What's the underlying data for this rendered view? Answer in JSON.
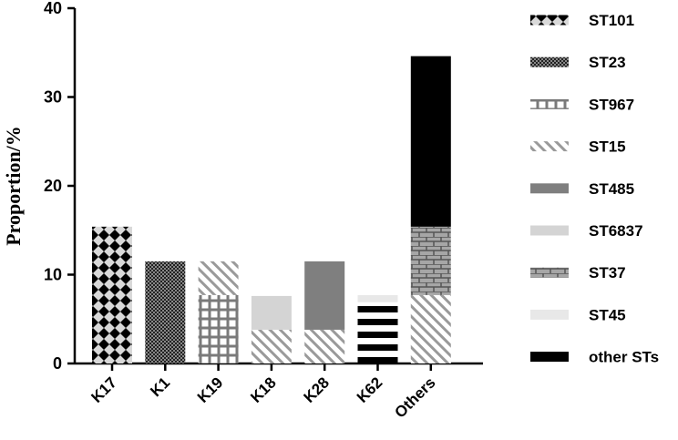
{
  "chart_data": {
    "type": "bar",
    "stacked": true,
    "title": "",
    "xlabel": "",
    "ylabel": "Proportion/%",
    "ylim": [
      0,
      40
    ],
    "yticks": [
      0,
      10,
      20,
      30,
      40
    ],
    "categories": [
      "K17",
      "K1",
      "K19",
      "K18",
      "K28",
      "K62",
      "Others"
    ],
    "series": [
      {
        "name": "ST101",
        "pattern": "diamond-check",
        "values": [
          15.4,
          0,
          0,
          0,
          0,
          0,
          0
        ]
      },
      {
        "name": "ST23",
        "pattern": "fine-check",
        "values": [
          0,
          11.5,
          0,
          0,
          0,
          0,
          0
        ]
      },
      {
        "name": "ST967",
        "pattern": "grid",
        "values": [
          0,
          0,
          7.7,
          0,
          0,
          0,
          0
        ]
      },
      {
        "name": "ST15",
        "pattern": "diagonal-hatch",
        "values": [
          0,
          0,
          3.8,
          3.8,
          3.8,
          0,
          7.7
        ]
      },
      {
        "name": "ST485",
        "pattern": "solid-gray",
        "values": [
          0,
          0,
          0,
          0,
          7.7,
          0,
          0
        ]
      },
      {
        "name": "ST6837",
        "pattern": "light-gray",
        "values": [
          0,
          0,
          0,
          3.8,
          0,
          0,
          0
        ]
      },
      {
        "name": "ST37",
        "pattern": "brick",
        "values": [
          0,
          0,
          0,
          0,
          0,
          0,
          7.7
        ]
      },
      {
        "name": "ST45",
        "pattern": "very-light-gray",
        "values": [
          0,
          0,
          0,
          0,
          0,
          0,
          0
        ]
      },
      {
        "name": "other STs",
        "pattern": "solid-black",
        "values": [
          0,
          0,
          0,
          0,
          0,
          0,
          19.2
        ]
      }
    ],
    "special_segments": [
      {
        "category": "K62",
        "pattern": "horizontal-stripes",
        "from": 0,
        "to": 6.9
      },
      {
        "category": "K62",
        "pattern": "very-light-gray",
        "from": 6.9,
        "to": 7.7
      }
    ],
    "legend_position": "right",
    "grid": false
  }
}
